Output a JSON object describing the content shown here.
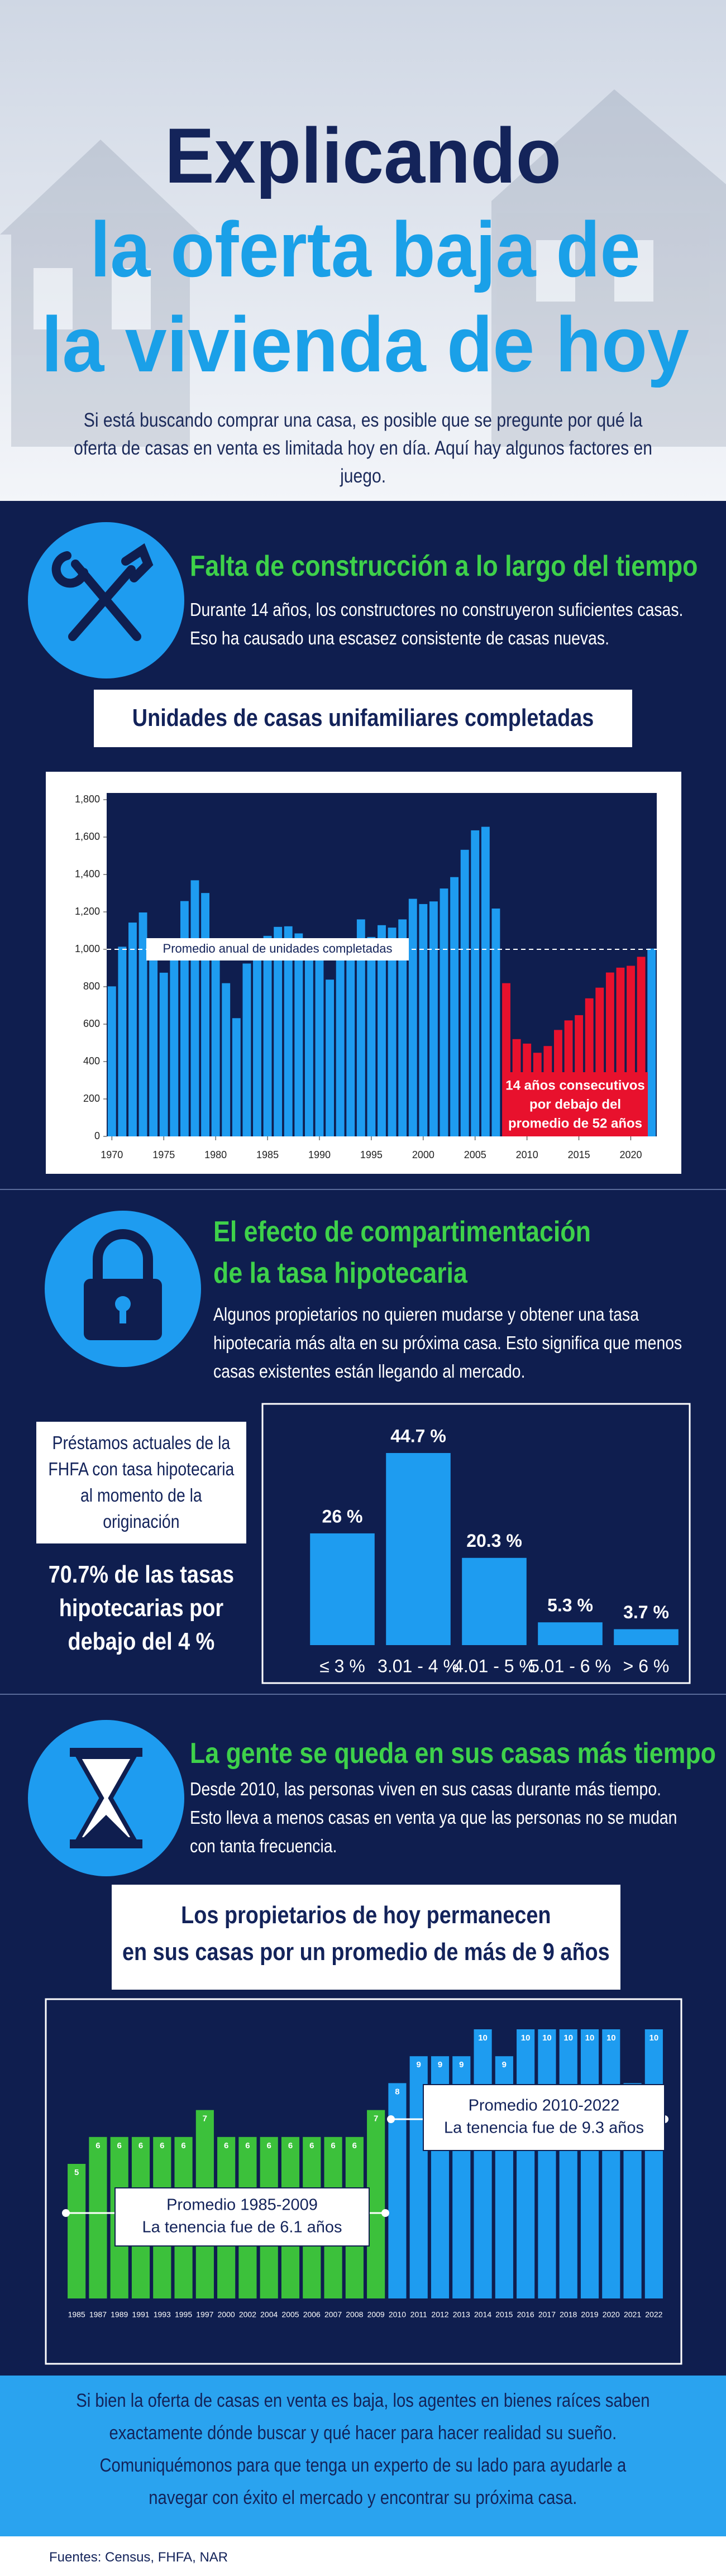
{
  "header": {
    "title_lines": [
      "Explicando",
      "la oferta baja de",
      "la vivienda de hoy"
    ],
    "subtitle": "Si está buscando comprar una casa, es posible que se pregunte por qué la oferta de casas en venta es limitada hoy en día. Aquí hay algunos factores en juego."
  },
  "sections": [
    {
      "heading_lines": [
        "Falta de construcción a lo largo del tiempo"
      ],
      "body": "Durante 14 años, los constructores no construyeron suficientes casas. Eso ha causado una escasez consistente de casas nuevas."
    },
    {
      "heading_lines": [
        "El efecto de compartimentación",
        "de la tasa hipotecaria"
      ],
      "body": "Algunos propietarios no quieren mudarse y obtener una tasa hipotecaria más alta en su próxima casa. Esto significa que menos casas existentes están llegando al mercado."
    },
    {
      "heading_lines": [
        "La gente se queda en sus casas más tiempo"
      ],
      "body": "Desde 2010, las personas viven en sus casas durante más tiempo. Esto lleva a menos casas en venta ya que las personas no se mudan con tanta frecuencia."
    }
  ],
  "chart_data": [
    {
      "type": "bar",
      "title": "Unidades de casas unifamiliares completadas",
      "x": [
        1970,
        1971,
        1972,
        1973,
        1974,
        1975,
        1976,
        1977,
        1978,
        1979,
        1980,
        1981,
        1982,
        1983,
        1984,
        1985,
        1986,
        1987,
        1988,
        1989,
        1990,
        1991,
        1992,
        1993,
        1994,
        1995,
        1996,
        1997,
        1998,
        1999,
        2000,
        2001,
        2002,
        2003,
        2004,
        2005,
        2006,
        2007,
        2008,
        2009,
        2010,
        2011,
        2012,
        2013,
        2014,
        2015,
        2016,
        2017,
        2018,
        2019,
        2020,
        2021,
        2022
      ],
      "values": [
        802,
        1014,
        1143,
        1197,
        940,
        875,
        1034,
        1258,
        1369,
        1301,
        957,
        819,
        632,
        924,
        1025,
        1072,
        1120,
        1123,
        1085,
        1026,
        966,
        838,
        964,
        1039,
        1160,
        1066,
        1129,
        1116,
        1160,
        1270,
        1242,
        1256,
        1325,
        1386,
        1532,
        1636,
        1655,
        1218,
        819,
        520,
        496,
        447,
        483,
        569,
        620,
        648,
        738,
        795,
        876,
        902,
        912,
        960,
        1004
      ],
      "colors": [
        "#1e9cf0",
        "#1e9cf0",
        "#1e9cf0",
        "#1e9cf0",
        "#1e9cf0",
        "#1e9cf0",
        "#1e9cf0",
        "#1e9cf0",
        "#1e9cf0",
        "#1e9cf0",
        "#1e9cf0",
        "#1e9cf0",
        "#1e9cf0",
        "#1e9cf0",
        "#1e9cf0",
        "#1e9cf0",
        "#1e9cf0",
        "#1e9cf0",
        "#1e9cf0",
        "#1e9cf0",
        "#1e9cf0",
        "#1e9cf0",
        "#1e9cf0",
        "#1e9cf0",
        "#1e9cf0",
        "#1e9cf0",
        "#1e9cf0",
        "#1e9cf0",
        "#1e9cf0",
        "#1e9cf0",
        "#1e9cf0",
        "#1e9cf0",
        "#1e9cf0",
        "#1e9cf0",
        "#1e9cf0",
        "#1e9cf0",
        "#1e9cf0",
        "#1e9cf0",
        "#e8112d",
        "#e8112d",
        "#e8112d",
        "#e8112d",
        "#e8112d",
        "#e8112d",
        "#e8112d",
        "#e8112d",
        "#e8112d",
        "#e8112d",
        "#e8112d",
        "#e8112d",
        "#e8112d",
        "#e8112d",
        "#1e9cf0"
      ],
      "xlim": [
        1969.5,
        2022.5
      ],
      "xticks": [
        1970,
        1975,
        1980,
        1985,
        1990,
        1995,
        2000,
        2005,
        2010,
        2015,
        2020
      ],
      "ylim": [
        0,
        1800
      ],
      "yticks": [
        0,
        200,
        400,
        600,
        800,
        {
          "value": 1000,
          "label": "1,000"
        },
        {
          "value": 1200,
          "label": "1,200"
        },
        {
          "value": 1400,
          "label": "1,400"
        },
        {
          "value": 1600,
          "label": "1,600"
        },
        {
          "value": 1800,
          "label": "1,800"
        }
      ],
      "reference_line": {
        "value": 1000,
        "label": "Promedio anual de unidades completadas"
      },
      "annotation_lines": [
        "14 años consecutivos",
        "por debajo del",
        "promedio de 52 años"
      ]
    },
    {
      "type": "bar",
      "title": "Préstamos actuales de la FHFA con tasa hipotecaria al momento de la originación",
      "note": "70.7% de las tasas hipotecarias por debajo del 4 %",
      "categories": [
        "≤ 3 %",
        "3.01 - 4 %",
        "4.01 - 5 %",
        "5.01 - 6 %",
        "> 6 %"
      ],
      "values": [
        26,
        44.7,
        20.3,
        5.3,
        3.7
      ],
      "value_labels": [
        "26 %",
        "44.7 %",
        "20.3 %",
        "5.3 %",
        "3.7 %"
      ],
      "color": "#1e9cf0"
    },
    {
      "type": "bar",
      "title_lines": [
        "Los propietarios de hoy permanecen",
        "en sus casas por un promedio de más de 9 años"
      ],
      "categories": [
        "1985",
        "1987",
        "1989",
        "1991",
        "1993",
        "1995",
        "1997",
        "2000",
        "2002",
        "2004",
        "2005",
        "2006",
        "2007",
        "2008",
        "2009",
        "2010",
        "2011",
        "2012",
        "2013",
        "2014",
        "2015",
        "2016",
        "2017",
        "2018",
        "2019",
        "2020",
        "2021",
        "2022"
      ],
      "values": [
        5,
        6,
        6,
        6,
        6,
        6,
        7,
        6,
        6,
        6,
        6,
        6,
        6,
        6,
        7,
        8,
        9,
        9,
        9,
        10,
        9,
        10,
        10,
        10,
        10,
        10,
        8,
        10
      ],
      "colors": [
        "#3cc13b",
        "#3cc13b",
        "#3cc13b",
        "#3cc13b",
        "#3cc13b",
        "#3cc13b",
        "#3cc13b",
        "#3cc13b",
        "#3cc13b",
        "#3cc13b",
        "#3cc13b",
        "#3cc13b",
        "#3cc13b",
        "#3cc13b",
        "#3cc13b",
        "#1e9cf0",
        "#1e9cf0",
        "#1e9cf0",
        "#1e9cf0",
        "#1e9cf0",
        "#1e9cf0",
        "#1e9cf0",
        "#1e9cf0",
        "#1e9cf0",
        "#1e9cf0",
        "#1e9cf0",
        "#1e9cf0",
        "#1e9cf0"
      ],
      "annotations": [
        {
          "lines": [
            "Promedio 1985-2009",
            "La tenencia fue de 6.1 años"
          ]
        },
        {
          "lines": [
            "Promedio 2010-2022",
            "La tenencia fue de 9.3 años"
          ]
        }
      ]
    }
  ],
  "footer": {
    "text": "Si bien la oferta de casas en venta es baja, los agentes en bienes raíces saben exactamente dónde buscar y qué hacer para hacer realidad su sueño. Comuniquémonos para que tenga un experto de su lado para ayudarle a navegar con éxito el mercado y encontrar su próxima casa.",
    "sources": "Fuentes: Census, FHFA, NAR"
  }
}
